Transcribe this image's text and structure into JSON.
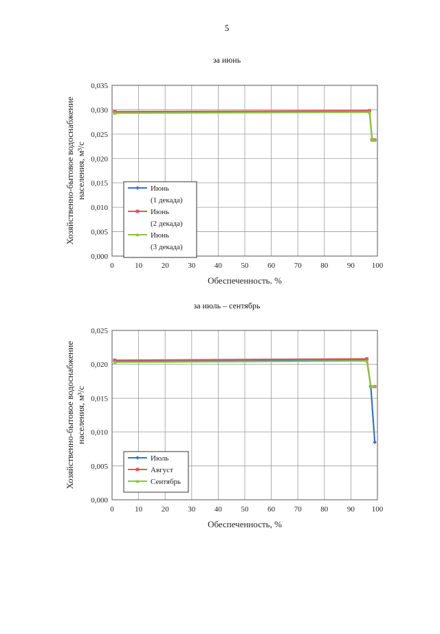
{
  "page": {
    "number": "5"
  },
  "chart_data": [
    {
      "type": "line",
      "title": "за июнь",
      "xlabel": "Обеспеченность, %",
      "ylabel": [
        "Хозяйственно-бытовое водоснабжение",
        "населения, м³/с"
      ],
      "xlim": [
        0,
        100
      ],
      "ylim": [
        0,
        0.035
      ],
      "xticks": [
        0,
        10,
        20,
        30,
        40,
        50,
        60,
        70,
        80,
        90,
        100
      ],
      "yticks": [
        0,
        0.005,
        0.01,
        0.015,
        0.02,
        0.025,
        0.03,
        0.035
      ],
      "ytick_labels": [
        "0,000",
        "0,005",
        "0,010",
        "0,015",
        "0,020",
        "0,025",
        "0,030",
        "0,035"
      ],
      "grid": true,
      "legend_position": "bottom-left",
      "series": [
        {
          "name": [
            "Июнь",
            "(1 декада)"
          ],
          "color": "#3a6fc4",
          "marker": "diamond",
          "x": [
            1,
            97,
            98,
            99
          ],
          "y": [
            0.0295,
            0.0297,
            0.0238,
            0.0238
          ]
        },
        {
          "name": [
            "Июнь",
            "(2 декада)"
          ],
          "color": "#d95a5a",
          "marker": "square",
          "x": [
            1,
            97,
            98,
            99
          ],
          "y": [
            0.0296,
            0.0298,
            0.0238,
            0.0238
          ]
        },
        {
          "name": [
            "Июнь",
            "(3 декада)"
          ],
          "color": "#8cc63f",
          "marker": "triangle",
          "x": [
            1,
            97,
            98,
            99
          ],
          "y": [
            0.0293,
            0.0295,
            0.0238,
            0.0238
          ]
        }
      ]
    },
    {
      "type": "line",
      "title": "за июль – сентябрь",
      "xlabel": "Обеспеченность, %",
      "ylabel": [
        "Хозяйственно-бытовое водоснабжение",
        "населения, м³/с"
      ],
      "xlim": [
        0,
        100
      ],
      "ylim": [
        0,
        0.025
      ],
      "xticks": [
        0,
        10,
        20,
        30,
        40,
        50,
        60,
        70,
        80,
        90,
        100
      ],
      "yticks": [
        0,
        0.005,
        0.01,
        0.015,
        0.02,
        0.025
      ],
      "ytick_labels": [
        "0,000",
        "0,005",
        "0,010",
        "0,015",
        "0,020",
        "0,025"
      ],
      "grid": true,
      "legend_position": "bottom-left",
      "series": [
        {
          "name": [
            "Июль"
          ],
          "color": "#3a6fc4",
          "marker": "diamond",
          "x": [
            1,
            96,
            97.5,
            99
          ],
          "y": [
            0.0205,
            0.0207,
            0.0167,
            0.0085
          ]
        },
        {
          "name": [
            "Август"
          ],
          "color": "#d95a5a",
          "marker": "square",
          "x": [
            1,
            96,
            97.5,
            99
          ],
          "y": [
            0.0206,
            0.0208,
            0.0167,
            0.0167
          ]
        },
        {
          "name": [
            "Сентябрь"
          ],
          "color": "#8cc63f",
          "marker": "triangle",
          "x": [
            1,
            96,
            97.5,
            99
          ],
          "y": [
            0.0203,
            0.0205,
            0.0167,
            0.0167
          ]
        }
      ]
    }
  ]
}
